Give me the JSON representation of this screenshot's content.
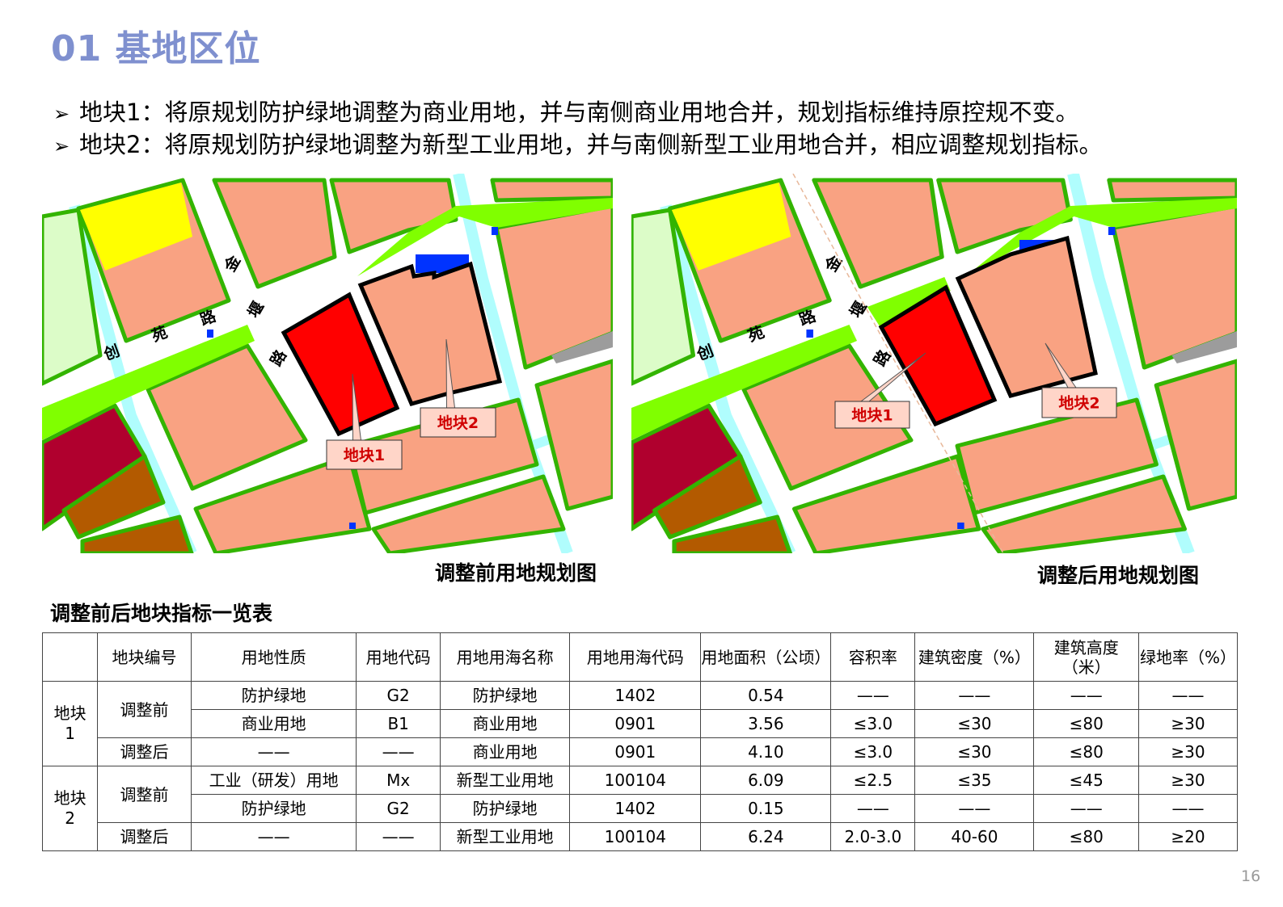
{
  "title": "01 基地区位",
  "bullets": [
    "地块1：将原规划防护绿地调整为商业用地，并与南侧商业用地合并，规划指标维持原控规不变。",
    "地块2：将原规划防护绿地调整为新型工业用地，并与南侧新型工业用地合并，相应调整规划指标。"
  ],
  "bullet_icon": "arrow-right-icon",
  "maps": {
    "before": {
      "caption": "调整前用地规划图",
      "roads": [
        "金",
        "堰",
        "路",
        "路",
        "苑",
        "创"
      ],
      "plot1_label": "地块1",
      "plot2_label": "地块2"
    },
    "after": {
      "caption": "调整后用地规划图",
      "roads": [
        "金",
        "堰",
        "路",
        "路",
        "苑",
        "创"
      ],
      "plot1_label": "地块1",
      "plot2_label": "地块2"
    },
    "colors": {
      "commercial": "#ff0000",
      "industrial": "#f9a282",
      "green_protective": "#80ff00",
      "green_edge": "#33b400",
      "water": "#b0fdfd",
      "education": "#ffff00",
      "utility": "#0033ff"
    }
  },
  "table": {
    "title": "调整前后地块指标一览表",
    "headers": [
      "",
      "地块编号",
      "用地性质",
      "用地代码",
      "用地用海名称",
      "用地用海代码",
      "用地面积（公顷）",
      "容积率",
      "建筑密度（%）",
      "建筑高度（米）",
      "绿地率（%）"
    ],
    "blocks": [
      {
        "label": "地块1",
        "groups": [
          {
            "stage": "调整前",
            "rows": [
              [
                "防护绿地",
                "G2",
                "防护绿地",
                "1402",
                "0.54",
                "——",
                "——",
                "——",
                "——"
              ],
              [
                "商业用地",
                "B1",
                "商业用地",
                "0901",
                "3.56",
                "≤3.0",
                "≤30",
                "≤80",
                "≥30"
              ]
            ]
          },
          {
            "stage": "调整后",
            "rows": [
              [
                "——",
                "——",
                "商业用地",
                "0901",
                "4.10",
                "≤3.0",
                "≤30",
                "≤80",
                "≥30"
              ]
            ]
          }
        ]
      },
      {
        "label": "地块2",
        "groups": [
          {
            "stage": "调整前",
            "rows": [
              [
                "工业（研发）用地",
                "Mx",
                "新型工业用地",
                "100104",
                "6.09",
                "≤2.5",
                "≤35",
                "≤45",
                "≥30"
              ],
              [
                "防护绿地",
                "G2",
                "防护绿地",
                "1402",
                "0.15",
                "——",
                "——",
                "——",
                "——"
              ]
            ]
          },
          {
            "stage": "调整后",
            "rows": [
              [
                "——",
                "——",
                "新型工业用地",
                "100104",
                "6.24",
                "2.0-3.0",
                "40-60",
                "≤80",
                "≥20"
              ]
            ]
          }
        ]
      }
    ]
  },
  "page_number": "16"
}
